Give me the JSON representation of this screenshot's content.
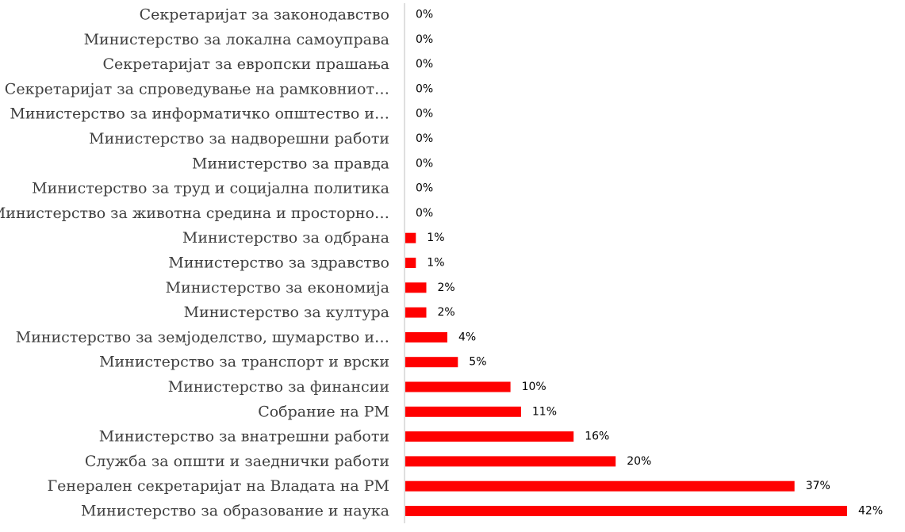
{
  "chart_data": {
    "type": "bar",
    "orientation": "horizontal",
    "title": "",
    "xlabel": "",
    "ylabel": "",
    "categories": [
      "Секретаријат за законодавство",
      "Министерство за локална самоуправа",
      "Секретаријат за европски прашања",
      "Секретаријат за спроведување на рамковниот…",
      "Министерство за информатичко општество и…",
      "Министерство за надворешни работи",
      "Министерство за правда",
      "Министерство за труд и социјална политика",
      "Министерство за животна средина и просторно…",
      "Министерство за одбрана",
      "Министерство за здравство",
      "Министерство за економија",
      "Министерство за култура",
      "Министерство за земјоделство, шумарство и…",
      "Министерство за транспорт и врски",
      "Министерство за финансии",
      "Собрание на РМ",
      "Министерство за внатрешни работи",
      "Служба за општи и заеднички работи",
      "Генерален секретаријат на Владата на РМ",
      "Министерство за образование и наука"
    ],
    "values": [
      0,
      0,
      0,
      0,
      0,
      0,
      0,
      0,
      0,
      1,
      1,
      2,
      2,
      4,
      5,
      10,
      11,
      16,
      20,
      37,
      42
    ],
    "value_labels": [
      "0%",
      "0%",
      "0%",
      "0%",
      "0%",
      "0%",
      "0%",
      "0%",
      "0%",
      "1%",
      "1%",
      "2%",
      "2%",
      "4%",
      "5%",
      "10%",
      "11%",
      "16%",
      "20%",
      "37%",
      "42%"
    ],
    "xlim": [
      0,
      42
    ],
    "grid": false,
    "legend": "none",
    "colors": {
      "bar": "#ff0000",
      "axis": "#bfbfbf",
      "label": "#404040",
      "value_label": "#000000"
    }
  }
}
